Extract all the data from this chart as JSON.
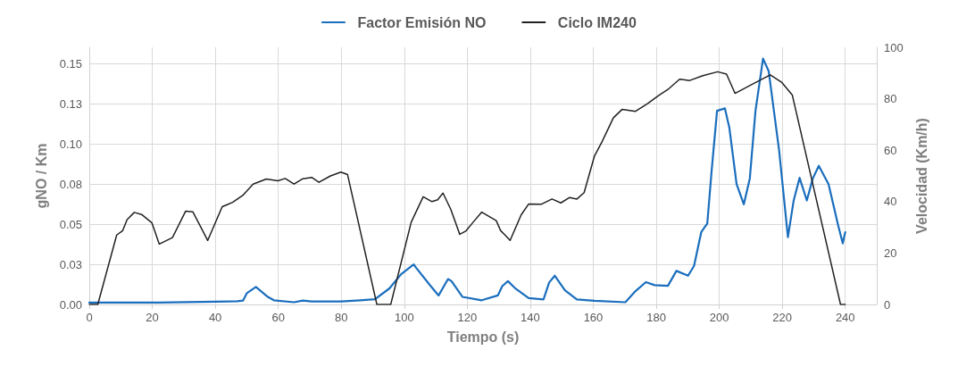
{
  "chart_data": {
    "type": "line",
    "xlabel": "Tiempo (s)",
    "ylabel": "gNO / Km",
    "y2label": "Velocidad (Km/h)",
    "legend": "top",
    "grid": true,
    "marker": "none",
    "line_style": "solid",
    "xlim": [
      0,
      250
    ],
    "xticks": [
      0,
      20,
      40,
      60,
      80,
      100,
      120,
      140,
      160,
      180,
      200,
      220,
      240
    ],
    "ylim": [
      0,
      0.16
    ],
    "yticks": [
      {
        "value": 0,
        "label": "0.00"
      },
      {
        "value": 0.025,
        "label": "0.03"
      },
      {
        "value": 0.05,
        "label": "0.05"
      },
      {
        "value": 0.075,
        "label": "0.08"
      },
      {
        "value": 0.1,
        "label": "0.10"
      },
      {
        "value": 0.125,
        "label": "0.13"
      },
      {
        "value": 0.15,
        "label": "0.15"
      }
    ],
    "y2lim": [
      0,
      100
    ],
    "y2ticks": [
      0,
      20,
      40,
      60,
      80,
      100
    ],
    "series": [
      {
        "name": "Factor Emisión NO",
        "color": "#1a6ebd",
        "x": [
          0,
          22,
          40,
          47,
          48.8,
          50,
          52.9,
          56.7,
          58.6,
          65,
          67.8,
          70.6,
          79.9,
          86,
          90.7,
          95.3,
          99,
          103,
          103.7,
          108.3,
          110.9,
          113.9,
          115,
          118.5,
          124.6,
          129.7,
          131.1,
          132.9,
          135.2,
          139.5,
          144.2,
          146,
          147.8,
          151,
          154.8,
          160.4,
          170.2,
          173.4,
          176.7,
          179.5,
          183.7,
          186.4,
          190.1,
          192,
          194.3,
          196.2,
          197.6,
          199.3,
          201.8,
          203.2,
          205.5,
          207.8,
          209.7,
          211.5,
          213.9,
          215.7,
          219,
          221.8,
          223.6,
          225.5,
          227.8,
          229.7,
          231.6,
          234.7,
          237.6,
          239.2,
          240
        ],
        "values": [
          0.0012,
          0.0012,
          0.0017,
          0.002,
          0.0024,
          0.007,
          0.0109,
          0.0047,
          0.0026,
          0.0014,
          0.0024,
          0.0019,
          0.0019,
          0.0026,
          0.0033,
          0.01,
          0.0188,
          0.0249,
          0.023,
          0.0117,
          0.0056,
          0.0158,
          0.0145,
          0.0047,
          0.0026,
          0.0056,
          0.0114,
          0.0145,
          0.0101,
          0.004,
          0.0031,
          0.0137,
          0.0179,
          0.0088,
          0.0031,
          0.0023,
          0.0014,
          0.0083,
          0.0139,
          0.012,
          0.0116,
          0.0209,
          0.0179,
          0.024,
          0.0451,
          0.0504,
          0.0837,
          0.1205,
          0.122,
          0.11,
          0.0749,
          0.0623,
          0.0784,
          0.1205,
          0.153,
          0.1451,
          0.0959,
          0.0419,
          0.0644,
          0.0788,
          0.0647,
          0.0784,
          0.0863,
          0.0749,
          0.0504,
          0.038,
          0.045
        ]
      },
      {
        "name": "Ciclo IM240",
        "color": "#222222",
        "axis": "y2",
        "x": [
          0,
          2.7,
          8.7,
          10.6,
          12,
          14.3,
          16.6,
          19.9,
          22.2,
          26.4,
          30.6,
          32.9,
          37.6,
          42.2,
          45.5,
          48.7,
          52,
          56.2,
          59.9,
          62.2,
          65,
          67.8,
          70.6,
          72.9,
          76.6,
          79.9,
          82,
          91.3,
          95.7,
          102.2,
          106,
          108.8,
          110.6,
          112.3,
          114.8,
          117.6,
          119.5,
          121.8,
          124.6,
          129.2,
          130.6,
          132,
          133.6,
          137.1,
          139.5,
          143.6,
          146.9,
          149.7,
          152.5,
          154.8,
          157.1,
          160.4,
          162.8,
          166.4,
          169.2,
          173.4,
          177.1,
          180.9,
          183.7,
          187.4,
          190.6,
          194.8,
          199.5,
          202.3,
          205,
          210.6,
          216.2,
          219.9,
          223.2,
          238.5,
          240
        ],
        "values": [
          0,
          0,
          27,
          28.7,
          33,
          35.8,
          35,
          31.7,
          23.5,
          26,
          36.3,
          36,
          24.9,
          38,
          39.7,
          42.4,
          46.8,
          48.8,
          48.1,
          49,
          46.8,
          48.9,
          49.4,
          47.5,
          50,
          51.5,
          50.5,
          0,
          0,
          32,
          41.9,
          40,
          40.7,
          43.3,
          36.9,
          27.3,
          28.5,
          31.9,
          35.9,
          32.6,
          28.7,
          27,
          24.9,
          34.8,
          39.1,
          39,
          41,
          39.5,
          41.6,
          41,
          43.5,
          57.8,
          63.3,
          72.6,
          75.9,
          75.1,
          78,
          81.4,
          83.6,
          87.6,
          87.1,
          89,
          90.5,
          89.6,
          82.1,
          85.7,
          89.3,
          86.3,
          81.4,
          0,
          0
        ]
      }
    ]
  }
}
